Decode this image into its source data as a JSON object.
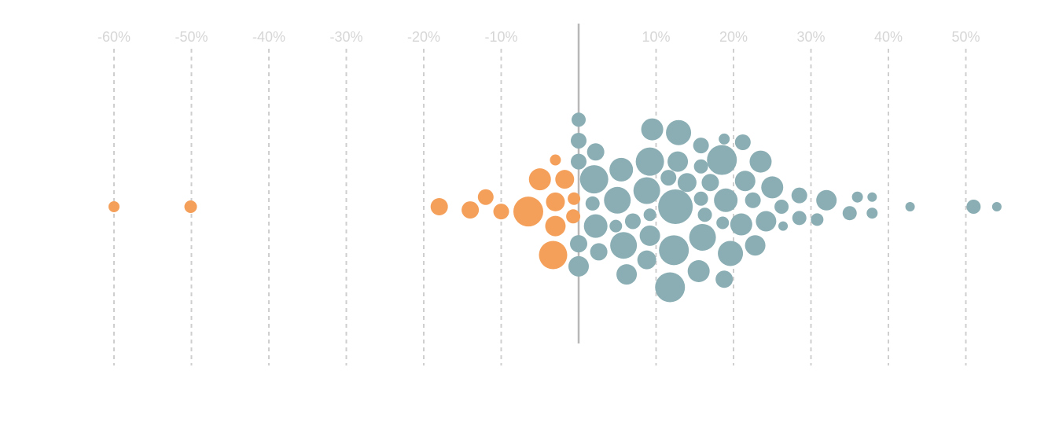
{
  "chart_data": {
    "type": "scatter",
    "subtype": "beeswarm",
    "title": "",
    "xlabel": "",
    "ylabel": "",
    "x_unit": "%",
    "xlim": [
      -62,
      54
    ],
    "x_ticks": [
      -60,
      -50,
      -40,
      -30,
      -20,
      -10,
      10,
      20,
      30,
      40,
      50
    ],
    "x_tick_labels": [
      "-60%",
      "-50%",
      "-40%",
      "-30%",
      "-20%",
      "-10%",
      "10%",
      "20%",
      "30%",
      "40%",
      "50%"
    ],
    "grid": "vertical dashed",
    "zero_line": true,
    "legend": "none",
    "colors": {
      "negative": "#F5A05A",
      "positive": "#8AAEB3",
      "grid": "#CFCFCF",
      "zero_line": "#B8B8B8",
      "tick_text": "#D6D6D6"
    },
    "series": [
      {
        "name": "",
        "color": "#F5A05A",
        "points": [
          {
            "x": -60.0,
            "offset": 0,
            "size": 7
          },
          {
            "x": -50.1,
            "offset": 0,
            "size": 8
          },
          {
            "x": -18.0,
            "offset": 0,
            "size": 11
          },
          {
            "x": -14.0,
            "offset": -0.2,
            "size": 11
          },
          {
            "x": -12.0,
            "offset": 0.6,
            "size": 10
          },
          {
            "x": -10.0,
            "offset": -0.3,
            "size": 10
          },
          {
            "x": -6.5,
            "offset": -0.3,
            "size": 19
          },
          {
            "x": -5.0,
            "offset": 1.7,
            "size": 14
          },
          {
            "x": -3.0,
            "offset": 2.9,
            "size": 7
          },
          {
            "x": -1.8,
            "offset": 1.7,
            "size": 12
          },
          {
            "x": -3.0,
            "offset": 0.3,
            "size": 12
          },
          {
            "x": -3.0,
            "offset": -1.2,
            "size": 13
          },
          {
            "x": -3.3,
            "offset": -3.0,
            "size": 18
          },
          {
            "x": -0.6,
            "offset": 0.5,
            "size": 8
          },
          {
            "x": -0.7,
            "offset": -0.6,
            "size": 9
          }
        ]
      },
      {
        "name": "",
        "color": "#8AAEB3",
        "points": [
          {
            "x": 0.0,
            "offset": 5.4,
            "size": 9
          },
          {
            "x": 0.0,
            "offset": 4.1,
            "size": 10
          },
          {
            "x": 0.0,
            "offset": 2.8,
            "size": 10
          },
          {
            "x": 0.0,
            "offset": -2.3,
            "size": 11
          },
          {
            "x": 0.0,
            "offset": -3.7,
            "size": 13
          },
          {
            "x": 2.2,
            "offset": 3.4,
            "size": 11
          },
          {
            "x": 2.0,
            "offset": 1.7,
            "size": 18
          },
          {
            "x": 1.8,
            "offset": 0.2,
            "size": 9
          },
          {
            "x": 2.2,
            "offset": -1.2,
            "size": 15
          },
          {
            "x": 2.6,
            "offset": -2.8,
            "size": 11
          },
          {
            "x": 5.5,
            "offset": 2.3,
            "size": 15
          },
          {
            "x": 5.0,
            "offset": 0.4,
            "size": 17
          },
          {
            "x": 4.8,
            "offset": -1.2,
            "size": 8
          },
          {
            "x": 7.0,
            "offset": -0.9,
            "size": 10
          },
          {
            "x": 5.8,
            "offset": -2.4,
            "size": 17
          },
          {
            "x": 6.2,
            "offset": -4.2,
            "size": 13
          },
          {
            "x": 9.5,
            "offset": 4.8,
            "size": 14
          },
          {
            "x": 9.2,
            "offset": 2.8,
            "size": 18
          },
          {
            "x": 8.8,
            "offset": 1.0,
            "size": 17
          },
          {
            "x": 9.2,
            "offset": -0.5,
            "size": 8
          },
          {
            "x": 9.2,
            "offset": -1.8,
            "size": 13
          },
          {
            "x": 8.8,
            "offset": -3.3,
            "size": 12
          },
          {
            "x": 11.6,
            "offset": 1.8,
            "size": 10
          },
          {
            "x": 12.9,
            "offset": 4.6,
            "size": 16
          },
          {
            "x": 12.8,
            "offset": 2.8,
            "size": 13
          },
          {
            "x": 12.5,
            "offset": 0.0,
            "size": 22
          },
          {
            "x": 12.3,
            "offset": -2.7,
            "size": 19
          },
          {
            "x": 11.8,
            "offset": -5.0,
            "size": 19
          },
          {
            "x": 14.0,
            "offset": 1.5,
            "size": 12
          },
          {
            "x": 15.8,
            "offset": 3.8,
            "size": 10
          },
          {
            "x": 15.8,
            "offset": 2.5,
            "size": 9
          },
          {
            "x": 15.8,
            "offset": 0.5,
            "size": 9
          },
          {
            "x": 16.3,
            "offset": -0.5,
            "size": 9
          },
          {
            "x": 16.0,
            "offset": -1.9,
            "size": 17
          },
          {
            "x": 15.5,
            "offset": -4.0,
            "size": 14
          },
          {
            "x": 17.0,
            "offset": 1.5,
            "size": 11
          },
          {
            "x": 18.8,
            "offset": 4.2,
            "size": 7
          },
          {
            "x": 18.5,
            "offset": 2.9,
            "size": 19
          },
          {
            "x": 19.0,
            "offset": 0.4,
            "size": 15
          },
          {
            "x": 18.6,
            "offset": -1.0,
            "size": 8
          },
          {
            "x": 19.6,
            "offset": -2.9,
            "size": 16
          },
          {
            "x": 18.8,
            "offset": -4.5,
            "size": 11
          },
          {
            "x": 21.2,
            "offset": 4.0,
            "size": 10
          },
          {
            "x": 21.5,
            "offset": 1.6,
            "size": 13
          },
          {
            "x": 22.5,
            "offset": 0.4,
            "size": 10
          },
          {
            "x": 21.0,
            "offset": -1.1,
            "size": 14
          },
          {
            "x": 22.8,
            "offset": -2.4,
            "size": 13
          },
          {
            "x": 23.5,
            "offset": 2.8,
            "size": 14
          },
          {
            "x": 24.2,
            "offset": -0.9,
            "size": 13
          },
          {
            "x": 25.0,
            "offset": 1.2,
            "size": 14
          },
          {
            "x": 26.2,
            "offset": 0.0,
            "size": 9
          },
          {
            "x": 26.4,
            "offset": -1.2,
            "size": 6
          },
          {
            "x": 28.5,
            "offset": 0.7,
            "size": 10
          },
          {
            "x": 28.5,
            "offset": -0.7,
            "size": 9
          },
          {
            "x": 32.0,
            "offset": 0.4,
            "size": 13
          },
          {
            "x": 30.8,
            "offset": -0.8,
            "size": 8
          },
          {
            "x": 35.0,
            "offset": -0.4,
            "size": 9
          },
          {
            "x": 36.0,
            "offset": 0.6,
            "size": 7
          },
          {
            "x": 37.9,
            "offset": 0.6,
            "size": 6
          },
          {
            "x": 37.9,
            "offset": -0.4,
            "size": 7
          },
          {
            "x": 42.8,
            "offset": 0.0,
            "size": 6
          },
          {
            "x": 51.0,
            "offset": 0.0,
            "size": 9
          },
          {
            "x": 54.0,
            "offset": 0.0,
            "size": 6
          }
        ]
      }
    ]
  }
}
